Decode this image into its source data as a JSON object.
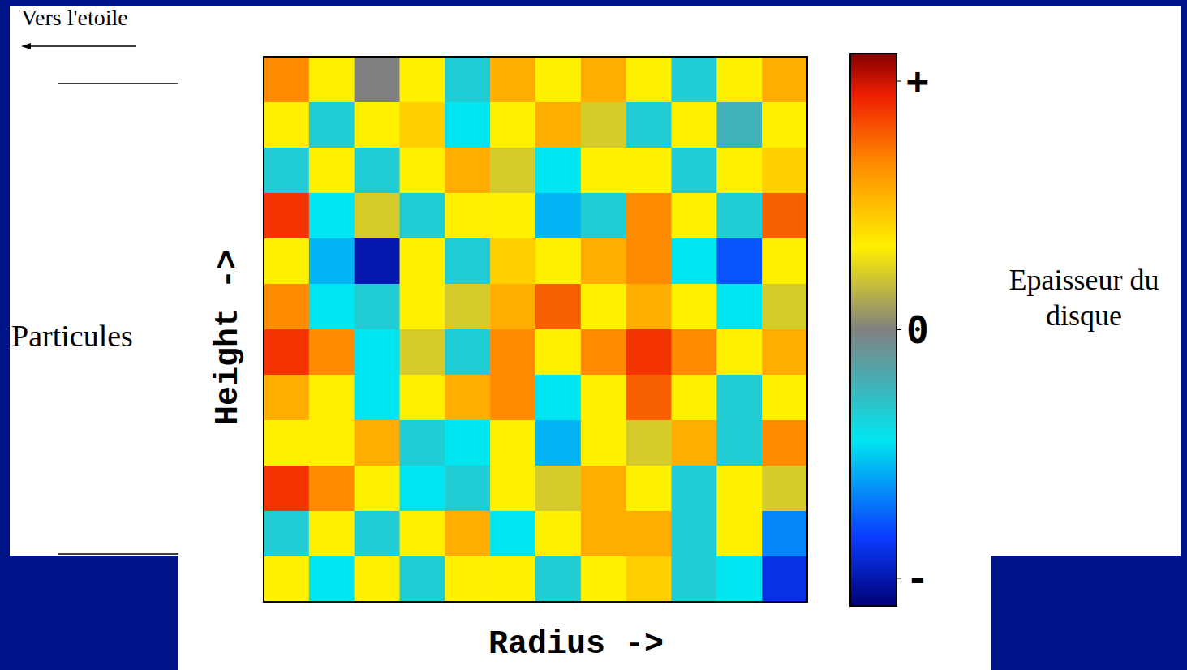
{
  "chart_data": {
    "type": "heatmap",
    "xlabel": "Radius ->",
    "ylabel": "Height ->",
    "annotations": [
      "Vers l'etoile",
      "Particules"
    ],
    "colorbar_label": "Epaisseur du disque",
    "tick_labels": false,
    "cells": [
      [
        0.6,
        0.3,
        0.0,
        0.3,
        -0.3,
        0.5,
        0.3,
        0.5,
        0.3,
        -0.3,
        0.3,
        0.5
      ],
      [
        0.3,
        -0.3,
        0.3,
        0.4,
        -0.4,
        0.3,
        0.5,
        0.2,
        -0.3,
        0.3,
        -0.2,
        0.3
      ],
      [
        -0.3,
        0.3,
        -0.3,
        0.3,
        0.5,
        0.2,
        -0.4,
        0.3,
        0.3,
        -0.3,
        0.3,
        0.4
      ],
      [
        0.8,
        -0.4,
        0.2,
        -0.3,
        0.3,
        0.3,
        -0.5,
        -0.3,
        0.6,
        0.3,
        -0.3,
        0.7
      ],
      [
        0.3,
        -0.5,
        -0.9,
        0.3,
        -0.3,
        0.4,
        0.3,
        0.5,
        0.6,
        -0.4,
        -0.7,
        0.3
      ],
      [
        0.6,
        -0.4,
        -0.3,
        0.3,
        0.2,
        0.5,
        0.7,
        0.3,
        0.5,
        0.3,
        -0.4,
        0.2
      ],
      [
        0.8,
        0.6,
        -0.4,
        0.2,
        -0.3,
        0.6,
        0.3,
        0.6,
        0.8,
        0.6,
        0.3,
        0.5
      ],
      [
        0.5,
        0.3,
        -0.4,
        0.3,
        0.5,
        0.6,
        -0.4,
        0.3,
        0.7,
        0.3,
        -0.3,
        0.3
      ],
      [
        0.3,
        0.3,
        0.5,
        -0.3,
        -0.4,
        0.3,
        -0.5,
        0.3,
        0.2,
        0.5,
        -0.3,
        0.6
      ],
      [
        0.8,
        0.6,
        0.3,
        -0.4,
        -0.3,
        0.3,
        0.2,
        0.5,
        0.3,
        -0.3,
        0.3,
        0.2
      ],
      [
        -0.3,
        0.3,
        -0.3,
        0.3,
        0.5,
        -0.4,
        0.3,
        0.5,
        0.5,
        -0.3,
        0.3,
        -0.6
      ],
      [
        0.3,
        -0.4,
        0.3,
        -0.3,
        0.3,
        0.3,
        -0.3,
        0.3,
        0.4,
        -0.3,
        -0.4,
        -0.8
      ]
    ],
    "colorbar": {
      "range": [
        -1,
        1
      ],
      "ticks": [
        {
          "value": 0.9,
          "label": "+"
        },
        {
          "value": 0,
          "label": "0"
        },
        {
          "value": -0.9,
          "label": "-"
        }
      ]
    }
  }
}
